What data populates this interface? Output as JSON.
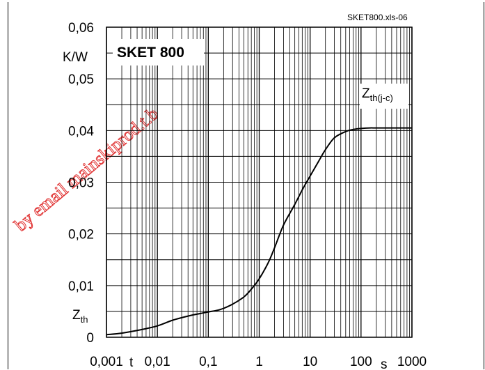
{
  "figure_id": "SKET800.xls-06",
  "watermark": "by email  mainskiprod.t.b",
  "chart_data": {
    "type": "line",
    "title": "SKET 800",
    "x_scale": "log",
    "xlim": [
      0.001,
      1000
    ],
    "ylim": [
      0,
      0.06
    ],
    "x_ticks": [
      "0,001",
      "0,01",
      "0,1",
      "1",
      "10",
      "100",
      "1000"
    ],
    "y_ticks": [
      "0",
      "0,01",
      "0,02",
      "0,03",
      "0,04",
      "0,05",
      "0,06"
    ],
    "x_unit_labels": [
      "t",
      "s"
    ],
    "y_unit_label": "K/W",
    "y_axis_label": "Zth",
    "grid": true,
    "series": [
      {
        "name": "Zth(j-c)",
        "x": [
          0.001,
          0.002,
          0.005,
          0.01,
          0.02,
          0.04,
          0.07,
          0.1,
          0.15,
          0.2,
          0.3,
          0.5,
          0.7,
          1,
          1.5,
          2,
          3,
          5,
          7,
          10,
          15,
          20,
          30,
          50,
          70,
          100,
          150,
          200,
          500,
          1000
        ],
        "y": [
          0.0005,
          0.0008,
          0.0015,
          0.0022,
          0.0033,
          0.0041,
          0.0046,
          0.0049,
          0.0052,
          0.0056,
          0.0064,
          0.0078,
          0.0093,
          0.0113,
          0.0144,
          0.0173,
          0.0217,
          0.0257,
          0.0285,
          0.0312,
          0.0342,
          0.0363,
          0.0386,
          0.0398,
          0.0402,
          0.0404,
          0.0405,
          0.0405,
          0.0405,
          0.0405
        ]
      }
    ]
  }
}
